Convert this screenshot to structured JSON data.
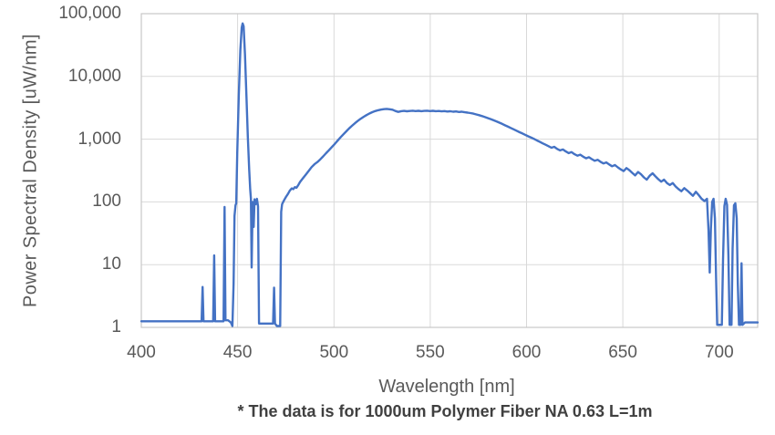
{
  "chart_data": {
    "type": "line",
    "title": "",
    "xlabel": "Wavelength [nm]",
    "ylabel": "Power Spectral Density [uW/nm]",
    "caption": "* The data is for 1000um Polymer Fiber NA 0.63 L=1m",
    "x_range": [
      400,
      720
    ],
    "y_range": [
      1,
      100000
    ],
    "y_scale": "log",
    "grid": true,
    "legend": "none",
    "colors": {
      "line": "#4472C4",
      "grid": "#D9D9D9",
      "border": "#C9C7C7",
      "axis_text": "#595959",
      "caption_text": "#404040",
      "background": "#FFFFFF"
    },
    "x_ticks": [
      {
        "value": 400,
        "label": "400"
      },
      {
        "value": 450,
        "label": "450"
      },
      {
        "value": 500,
        "label": "500"
      },
      {
        "value": 550,
        "label": "550"
      },
      {
        "value": 600,
        "label": "600"
      },
      {
        "value": 650,
        "label": "650"
      },
      {
        "value": 700,
        "label": "700"
      }
    ],
    "y_ticks": [
      {
        "value": 1,
        "label": "1"
      },
      {
        "value": 10,
        "label": "10"
      },
      {
        "value": 100,
        "label": "100"
      },
      {
        "value": 1000,
        "label": "1,000"
      },
      {
        "value": 10000,
        "label": "10,000"
      },
      {
        "value": 100000,
        "label": "100,000"
      }
    ],
    "series": [
      {
        "points": [
          [
            400,
            1.25
          ],
          [
            408,
            1.25
          ],
          [
            416,
            1.25
          ],
          [
            424,
            1.25
          ],
          [
            430,
            1.25
          ],
          [
            431.3,
            1.25
          ],
          [
            431.8,
            4.4
          ],
          [
            432.3,
            1.25
          ],
          [
            435,
            1.25
          ],
          [
            437.3,
            1.25
          ],
          [
            437.8,
            14
          ],
          [
            438.3,
            1.25
          ],
          [
            441,
            1.25
          ],
          [
            442.7,
            1.25
          ],
          [
            443.2,
            83
          ],
          [
            443.7,
            1.3
          ],
          [
            445,
            1.3
          ],
          [
            446.5,
            1.2
          ],
          [
            447.3,
            1.05
          ],
          [
            447.9,
            5
          ],
          [
            448.4,
            60
          ],
          [
            448.9,
            88
          ],
          [
            449.3,
            95
          ],
          [
            449.8,
            600
          ],
          [
            450.6,
            5000
          ],
          [
            451.4,
            26000
          ],
          [
            452.1,
            60000
          ],
          [
            452.6,
            70000
          ],
          [
            453.1,
            63000
          ],
          [
            453.8,
            22000
          ],
          [
            454.6,
            4800
          ],
          [
            455.3,
            1100
          ],
          [
            456.0,
            330
          ],
          [
            456.5,
            160
          ],
          [
            456.9,
            112
          ],
          [
            457.3,
            9
          ],
          [
            457.8,
            100
          ],
          [
            458.3,
            40
          ],
          [
            458.8,
            110
          ],
          [
            459.4,
            92
          ],
          [
            460.0,
            112
          ],
          [
            460.6,
            85
          ],
          [
            461.1,
            1.15
          ],
          [
            463.5,
            1.15
          ],
          [
            466,
            1.15
          ],
          [
            468.4,
            1.15
          ],
          [
            468.9,
            4.3
          ],
          [
            469.4,
            1.15
          ],
          [
            470.4,
            1.05
          ],
          [
            472.1,
            1.05
          ],
          [
            472.6,
            70
          ],
          [
            473.1,
            92
          ],
          [
            474.1,
            106
          ],
          [
            475.1,
            120
          ],
          [
            476.1,
            134
          ],
          [
            477.1,
            152
          ],
          [
            478.1,
            164
          ],
          [
            478.9,
            160
          ],
          [
            479.7,
            172
          ],
          [
            480.5,
            168
          ],
          [
            481.4,
            184
          ],
          [
            482.4,
            208
          ],
          [
            483.9,
            238
          ],
          [
            485.4,
            272
          ],
          [
            486.9,
            312
          ],
          [
            488.4,
            358
          ],
          [
            489.9,
            398
          ],
          [
            491.4,
            432
          ],
          [
            492.9,
            478
          ],
          [
            494.4,
            532
          ],
          [
            495.9,
            598
          ],
          [
            497.4,
            668
          ],
          [
            498.9,
            748
          ],
          [
            500.4,
            838
          ],
          [
            501.9,
            948
          ],
          [
            503.4,
            1065
          ],
          [
            504.9,
            1195
          ],
          [
            506.4,
            1335
          ],
          [
            507.9,
            1485
          ],
          [
            509.4,
            1635
          ],
          [
            510.9,
            1795
          ],
          [
            512.4,
            1955
          ],
          [
            513.9,
            2115
          ],
          [
            515.4,
            2270
          ],
          [
            516.9,
            2420
          ],
          [
            518.4,
            2560
          ],
          [
            519.9,
            2690
          ],
          [
            521.4,
            2800
          ],
          [
            522.9,
            2890
          ],
          [
            524.4,
            2960
          ],
          [
            525.9,
            3010
          ],
          [
            527.4,
            3040
          ],
          [
            528.9,
            3000
          ],
          [
            530.4,
            2950
          ],
          [
            531.9,
            2810
          ],
          [
            533.4,
            2720
          ],
          [
            534.9,
            2790
          ],
          [
            536.4,
            2820
          ],
          [
            537.9,
            2780
          ],
          [
            539.4,
            2815
          ],
          [
            540.9,
            2845
          ],
          [
            542.4,
            2800
          ],
          [
            543.9,
            2835
          ],
          [
            545.4,
            2790
          ],
          [
            546.9,
            2825
          ],
          [
            548.4,
            2845
          ],
          [
            549.9,
            2800
          ],
          [
            551.4,
            2830
          ],
          [
            552.9,
            2790
          ],
          [
            554.4,
            2815
          ],
          [
            555.9,
            2775
          ],
          [
            557.4,
            2800
          ],
          [
            558.9,
            2760
          ],
          [
            560.4,
            2785
          ],
          [
            561.9,
            2740
          ],
          [
            563.4,
            2765
          ],
          [
            564.9,
            2715
          ],
          [
            566.4,
            2735
          ],
          [
            567.9,
            2685
          ],
          [
            569.4,
            2650
          ],
          [
            570.9,
            2600
          ],
          [
            572.4,
            2550
          ],
          [
            573.9,
            2480
          ],
          [
            575.4,
            2410
          ],
          [
            576.9,
            2330
          ],
          [
            578.4,
            2250
          ],
          [
            579.9,
            2170
          ],
          [
            581.4,
            2090
          ],
          [
            582.9,
            2000
          ],
          [
            584.4,
            1920
          ],
          [
            585.9,
            1830
          ],
          [
            587.4,
            1750
          ],
          [
            588.9,
            1660
          ],
          [
            590.4,
            1580
          ],
          [
            591.9,
            1505
          ],
          [
            593.4,
            1430
          ],
          [
            594.9,
            1360
          ],
          [
            596.4,
            1290
          ],
          [
            597.9,
            1230
          ],
          [
            599.4,
            1170
          ],
          [
            600.9,
            1110
          ],
          [
            602.4,
            1060
          ],
          [
            603.9,
            1010
          ],
          [
            605.4,
            955
          ],
          [
            606.9,
            905
          ],
          [
            608.4,
            858
          ],
          [
            609.9,
            815
          ],
          [
            611.4,
            772
          ],
          [
            612.9,
            730
          ],
          [
            614.4,
            756
          ],
          [
            615.9,
            700
          ],
          [
            617.4,
            662
          ],
          [
            618.9,
            686
          ],
          [
            620.4,
            636
          ],
          [
            621.9,
            600
          ],
          [
            623.4,
            622
          ],
          [
            624.9,
            576
          ],
          [
            626.4,
            545
          ],
          [
            627.9,
            566
          ],
          [
            629.4,
            526
          ],
          [
            630.9,
            495
          ],
          [
            632.4,
            516
          ],
          [
            633.9,
            480
          ],
          [
            635.4,
            452
          ],
          [
            636.9,
            470
          ],
          [
            638.4,
            436
          ],
          [
            639.9,
            410
          ],
          [
            641.4,
            426
          ],
          [
            642.9,
            396
          ],
          [
            644.4,
            370
          ],
          [
            645.9,
            386
          ],
          [
            647.4,
            356
          ],
          [
            648.9,
            330
          ],
          [
            650.4,
            310
          ],
          [
            651.9,
            346
          ],
          [
            653.4,
            320
          ],
          [
            654.9,
            290
          ],
          [
            656.4,
            265
          ],
          [
            657.9,
            300
          ],
          [
            659.4,
            276
          ],
          [
            660.9,
            246
          ],
          [
            662.4,
            226
          ],
          [
            663.9,
            260
          ],
          [
            665.4,
            286
          ],
          [
            666.9,
            256
          ],
          [
            668.4,
            230
          ],
          [
            669.9,
            210
          ],
          [
            671.4,
            226
          ],
          [
            672.9,
            200
          ],
          [
            674.4,
            186
          ],
          [
            675.9,
            200
          ],
          [
            677.4,
            176
          ],
          [
            678.9,
            160
          ],
          [
            680.4,
            148
          ],
          [
            681.9,
            166
          ],
          [
            683.4,
            152
          ],
          [
            684.9,
            138
          ],
          [
            686.4,
            125
          ],
          [
            687.9,
            145
          ],
          [
            689.4,
            128
          ],
          [
            690.9,
            112
          ],
          [
            692.4,
            103
          ],
          [
            693.7,
            112
          ],
          [
            694.5,
            35
          ],
          [
            695.1,
            7.5
          ],
          [
            695.7,
            38
          ],
          [
            696.4,
            100
          ],
          [
            697.1,
            112
          ],
          [
            697.8,
            55
          ],
          [
            698.4,
            6
          ],
          [
            699.0,
            1.1
          ],
          [
            700.2,
            1.1
          ],
          [
            701.4,
            1.1
          ],
          [
            702.0,
            12
          ],
          [
            702.7,
            86
          ],
          [
            703.4,
            112
          ],
          [
            704.1,
            90
          ],
          [
            704.8,
            14
          ],
          [
            705.4,
            1.1
          ],
          [
            706.4,
            1.1
          ],
          [
            707.0,
            18
          ],
          [
            707.7,
            88
          ],
          [
            708.4,
            95
          ],
          [
            709.1,
            55
          ],
          [
            709.7,
            5
          ],
          [
            710.3,
            1.1
          ],
          [
            711.1,
            1.1
          ],
          [
            711.6,
            10.5
          ],
          [
            712.1,
            1.1
          ],
          [
            713.4,
            1.2
          ],
          [
            716,
            1.2
          ],
          [
            720,
            1.2
          ]
        ]
      }
    ]
  }
}
